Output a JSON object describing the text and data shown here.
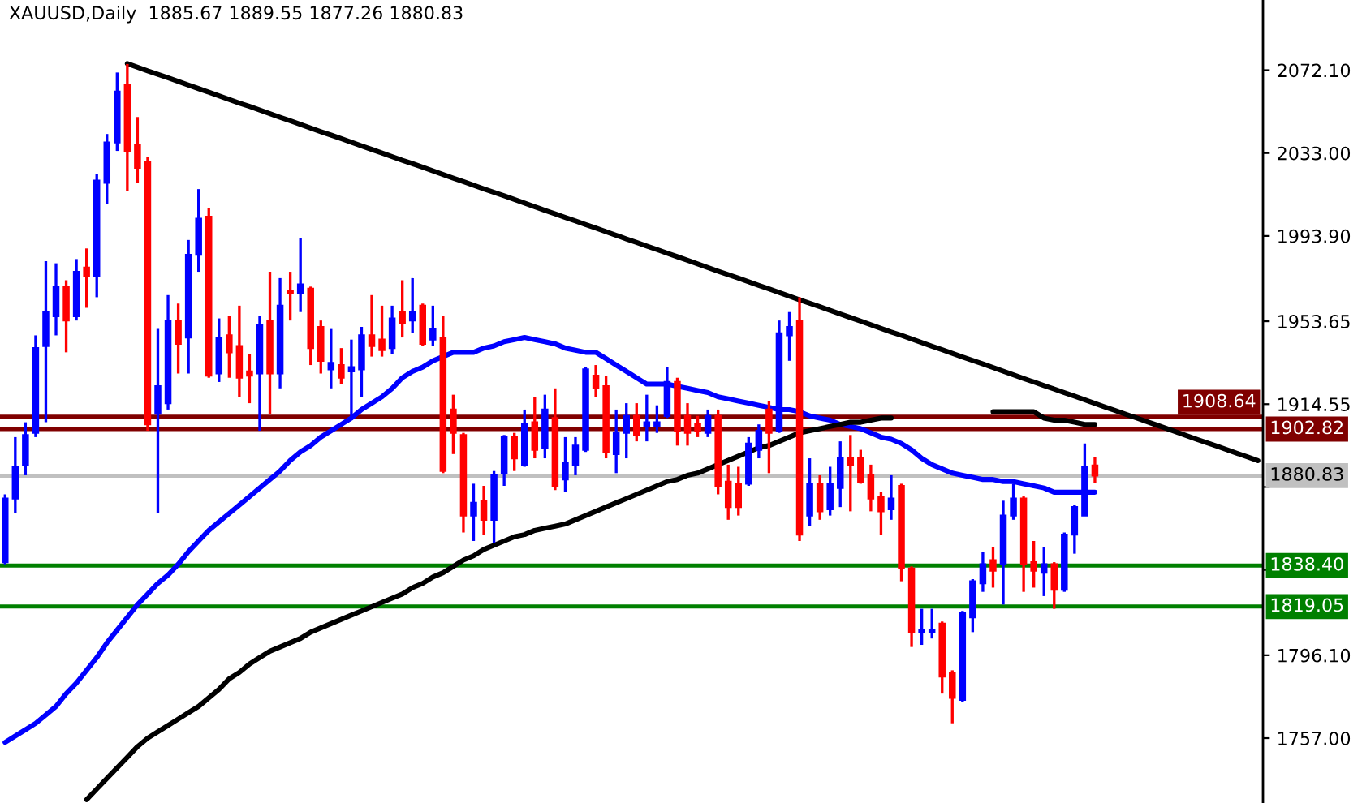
{
  "chart_data": {
    "type": "candlestick",
    "title": "XAUUSD,Daily  1885.67 1889.55 1877.26 1880.83",
    "categories": [
      null,
      null,
      null,
      null,
      null,
      null,
      null,
      null,
      null,
      null,
      null,
      null,
      null,
      null,
      null,
      null,
      null,
      null,
      null,
      null,
      null,
      null,
      null,
      null,
      null,
      null,
      null,
      null,
      null,
      null,
      null,
      null,
      null,
      null,
      null,
      null,
      null,
      null,
      null,
      null,
      null,
      null,
      null,
      null,
      null,
      null,
      null,
      null,
      null,
      null,
      null,
      null,
      null,
      null,
      null,
      null,
      null,
      null,
      null,
      null,
      null,
      null,
      null,
      null,
      null,
      null,
      null,
      null,
      null,
      null,
      null,
      null,
      null,
      null,
      null,
      null,
      null,
      null,
      null,
      null,
      null,
      null,
      null,
      null,
      null,
      null,
      null,
      null,
      null,
      null,
      null,
      null,
      null,
      null,
      null,
      null,
      null,
      null,
      null,
      null,
      null,
      null,
      null,
      null,
      null,
      null,
      null,
      null,
      null,
      null,
      null,
      null,
      null,
      null,
      null,
      null,
      null,
      null,
      null,
      null,
      null,
      null,
      null,
      null
    ],
    "ohlc": [
      [
        1840,
        1872,
        1839,
        1870
      ],
      [
        1870,
        1899,
        1863,
        1885
      ],
      [
        1886,
        1906,
        1881,
        1900
      ],
      [
        1901,
        1947,
        1899,
        1941
      ],
      [
        1942,
        1982,
        1906,
        1958
      ],
      [
        1956,
        1981,
        1947,
        1970
      ],
      [
        1970,
        1973,
        1939,
        1954
      ],
      [
        1956,
        1983,
        1954,
        1977
      ],
      [
        1979,
        1988,
        1960,
        1975
      ],
      [
        1975,
        2023,
        1965,
        2020
      ],
      [
        2019,
        2042,
        2009,
        2038
      ],
      [
        2038,
        2071,
        2034,
        2062
      ],
      [
        2065,
        2075,
        2015,
        2034
      ],
      [
        2037,
        2050,
        2019,
        2026
      ],
      [
        2029,
        2031,
        1902,
        1905
      ],
      [
        1910,
        1950,
        1863,
        1923
      ],
      [
        1915,
        1966,
        1912,
        1954
      ],
      [
        1954,
        1962,
        1929,
        1943
      ],
      [
        1946,
        1992,
        1929,
        1985
      ],
      [
        1985,
        2016,
        1977,
        2002
      ],
      [
        2003,
        2007,
        1927,
        1928
      ],
      [
        1929,
        1955,
        1925,
        1946
      ],
      [
        1947,
        1956,
        1927,
        1939
      ],
      [
        1942,
        1961,
        1918,
        1927
      ],
      [
        1930,
        1938,
        1915,
        1928
      ],
      [
        1929,
        1956,
        1902,
        1952
      ],
      [
        1954,
        1977,
        1910,
        1929
      ],
      [
        1929,
        1974,
        1922,
        1961
      ],
      [
        1968,
        1977,
        1954,
        1967
      ],
      [
        1967,
        1993,
        1958,
        1971
      ],
      [
        1969,
        1970,
        1933,
        1941
      ],
      [
        1951,
        1954,
        1929,
        1935
      ],
      [
        1931,
        1950,
        1922,
        1934
      ],
      [
        1933,
        1941,
        1924,
        1927
      ],
      [
        1930,
        1945,
        1909,
        1932
      ],
      [
        1931,
        1951,
        1918,
        1947
      ],
      [
        1947,
        1966,
        1937,
        1942
      ],
      [
        1945,
        1961,
        1937,
        1940
      ],
      [
        1941,
        1961,
        1938,
        1955
      ],
      [
        1958,
        1973,
        1946,
        1953
      ],
      [
        1954,
        1974,
        1948,
        1958
      ],
      [
        1961,
        1962,
        1942,
        1943
      ],
      [
        1945,
        1961,
        1942,
        1950
      ],
      [
        1946,
        1956,
        1882,
        1883
      ],
      [
        1912,
        1919,
        1891,
        1901
      ],
      [
        1900,
        1901,
        1854,
        1862
      ],
      [
        1862,
        1877,
        1850,
        1868
      ],
      [
        1869,
        1876,
        1853,
        1860
      ],
      [
        1860,
        1883,
        1849,
        1881
      ],
      [
        1882,
        1900,
        1876,
        1899
      ],
      [
        1899,
        1901,
        1883,
        1889
      ],
      [
        1886,
        1912,
        1885,
        1905
      ],
      [
        1906,
        1918,
        1889,
        1893
      ],
      [
        1894,
        1919,
        1889,
        1912
      ],
      [
        1908,
        1922,
        1874,
        1876
      ],
      [
        1879,
        1899,
        1873,
        1887
      ],
      [
        1886,
        1899,
        1881,
        1895
      ],
      [
        1893,
        1932,
        1892,
        1931
      ],
      [
        1928,
        1933,
        1918,
        1922
      ],
      [
        1923,
        1928,
        1889,
        1892
      ],
      [
        1891,
        1912,
        1882,
        1901
      ],
      [
        1901,
        1915,
        1889,
        1909
      ],
      [
        1909,
        1915,
        1897,
        1900
      ],
      [
        1904,
        1919,
        1897,
        1906
      ],
      [
        1904,
        1914,
        1901,
        1906
      ],
      [
        1909,
        1932,
        1908,
        1925
      ],
      [
        1925,
        1927,
        1895,
        1902
      ],
      [
        1909,
        1915,
        1895,
        1901
      ],
      [
        1905,
        1909,
        1899,
        1902
      ],
      [
        1901,
        1912,
        1899,
        1909
      ],
      [
        1909,
        1912,
        1872,
        1876
      ],
      [
        1878,
        1886,
        1860,
        1866
      ],
      [
        1877,
        1885,
        1862,
        1866
      ],
      [
        1877,
        1899,
        1876,
        1896
      ],
      [
        1893,
        1905,
        1889,
        1902
      ],
      [
        1912,
        1916,
        1882,
        1901
      ],
      [
        1902,
        1954,
        1901,
        1948
      ],
      [
        1947,
        1958,
        1935,
        1951
      ],
      [
        1954,
        1965,
        1850,
        1853
      ],
      [
        1862,
        1889,
        1857,
        1877
      ],
      [
        1877,
        1881,
        1860,
        1864
      ],
      [
        1865,
        1885,
        1862,
        1877
      ],
      [
        1875,
        1897,
        1866,
        1889
      ],
      [
        1889,
        1900,
        1864,
        1886
      ],
      [
        1889,
        1893,
        1877,
        1878
      ],
      [
        1881,
        1886,
        1864,
        1870
      ],
      [
        1871,
        1873,
        1853,
        1864
      ],
      [
        1865,
        1881,
        1860,
        1870
      ],
      [
        1876,
        1877,
        1831,
        1837
      ],
      [
        1837,
        1838,
        1800,
        1807
      ],
      [
        1807,
        1818,
        1801,
        1808
      ],
      [
        1807,
        1818,
        1804,
        1808
      ],
      [
        1811,
        1812,
        1778,
        1786
      ],
      [
        1788,
        1789,
        1764,
        1776
      ],
      [
        1775,
        1817,
        1774,
        1816
      ],
      [
        1814,
        1832,
        1807,
        1831
      ],
      [
        1830,
        1845,
        1826,
        1839
      ],
      [
        1841,
        1847,
        1828,
        1836
      ],
      [
        1839,
        1869,
        1820,
        1862
      ],
      [
        1862,
        1877,
        1860,
        1870
      ],
      [
        1870,
        1871,
        1826,
        1839
      ],
      [
        1840,
        1850,
        1828,
        1836
      ],
      [
        1835,
        1847,
        1824,
        1839
      ],
      [
        1839,
        1840,
        1818,
        1827
      ],
      [
        1827,
        1854,
        1826,
        1853
      ],
      [
        1853,
        1867,
        1844,
        1866
      ],
      [
        1862,
        1896,
        1862,
        1885
      ],
      [
        1885.67,
        1889.55,
        1877.26,
        1880.83
      ],
      null,
      null,
      null,
      null,
      null,
      null,
      null,
      null,
      null,
      null,
      null,
      null,
      null,
      null,
      null,
      null
    ],
    "colors": [
      "#0000ff",
      "#0000ff",
      "#0000ff",
      "#0000ff",
      "#0000ff",
      "#0000ff",
      "#ff0000",
      "#0000ff",
      "#ff0000",
      "#0000ff",
      "#0000ff",
      "#0000ff",
      "#ff0000",
      "#ff0000",
      "#ff0000",
      "#0000ff",
      "#0000ff",
      "#ff0000",
      "#0000ff",
      "#0000ff",
      "#ff0000",
      "#0000ff",
      "#ff0000",
      "#ff0000",
      "#ff0000",
      "#0000ff",
      "#ff0000",
      "#0000ff",
      "#ff0000",
      "#0000ff",
      "#ff0000",
      "#ff0000",
      "#0000ff",
      "#ff0000",
      "#0000ff",
      "#0000ff",
      "#ff0000",
      "#ff0000",
      "#0000ff",
      "#ff0000",
      "#0000ff",
      "#ff0000",
      "#0000ff",
      "#ff0000",
      "#ff0000",
      "#ff0000",
      "#0000ff",
      "#ff0000",
      "#0000ff",
      "#0000ff",
      "#ff0000",
      "#0000ff",
      "#ff0000",
      "#0000ff",
      "#ff0000",
      "#0000ff",
      "#0000ff",
      "#0000ff",
      "#ff0000",
      "#ff0000",
      "#0000ff",
      "#0000ff",
      "#ff0000",
      "#0000ff",
      "#0000ff",
      "#0000ff",
      "#ff0000",
      "#ff0000",
      "#ff0000",
      "#0000ff",
      "#ff0000",
      "#ff0000",
      "#ff0000",
      "#0000ff",
      "#0000ff",
      "#ff0000",
      "#0000ff",
      "#0000ff",
      "#ff0000",
      "#0000ff",
      "#ff0000",
      "#0000ff",
      "#0000ff",
      "#ff0000",
      "#ff0000",
      "#ff0000",
      "#ff0000",
      "#0000ff",
      "#ff0000",
      "#ff0000",
      "#0000ff",
      "#0000ff",
      "#ff0000",
      "#ff0000",
      "#0000ff",
      "#0000ff",
      "#0000ff",
      "#ff0000",
      "#0000ff",
      "#0000ff",
      "#ff0000",
      "#ff0000",
      "#0000ff",
      "#ff0000",
      "#0000ff",
      "#0000ff",
      "#0000ff",
      "#ff0000",
      null,
      null,
      null,
      null,
      null,
      null,
      null,
      null,
      null,
      null,
      null,
      null,
      null,
      null,
      null,
      null
    ],
    "series": [
      {
        "type": "line",
        "color": "#0000ff",
        "values": [
          1755,
          1758,
          1761,
          1764,
          1768,
          1772,
          1778,
          1783,
          1789,
          1795,
          1802,
          1808,
          1814,
          1820,
          1825,
          1830,
          1834,
          1839,
          1845,
          1850,
          1855,
          1859,
          1863,
          1867,
          1871,
          1875,
          1879,
          1883,
          1888,
          1892,
          1895,
          1899,
          1902,
          1905,
          1908,
          1912,
          1915,
          1918,
          1922,
          1927,
          1930,
          1932,
          1935,
          1937,
          1939,
          1939,
          1939,
          1941,
          1942,
          1944,
          1945,
          1946,
          1945,
          1944,
          1943,
          1941,
          1940,
          1939,
          1939,
          1936,
          1933,
          1930,
          1927,
          1924,
          1924,
          1924,
          1923,
          1922,
          1921,
          1920,
          1918,
          1917,
          1916,
          1915,
          1914,
          1913,
          1912,
          1912,
          1911,
          1909,
          1908,
          1907,
          1905,
          1904,
          1903,
          1901,
          1899,
          1898,
          1896,
          1893,
          1889,
          1886,
          1884,
          1882,
          1881,
          1880,
          1879,
          1879,
          1878,
          1878,
          1877,
          1876,
          1875,
          1873,
          1873,
          1873,
          1873,
          1873,
          null,
          null,
          null,
          null,
          null,
          null,
          null,
          null,
          null,
          null,
          null,
          null,
          null,
          null,
          null,
          null
        ]
      },
      {
        "type": "line",
        "color": "#000000",
        "values": [
          null,
          null,
          null,
          null,
          null,
          null,
          null,
          null,
          1728,
          1733,
          1738,
          1743,
          1748,
          1753,
          1757,
          1760,
          1763,
          1766,
          1769,
          1772,
          1776,
          1780,
          1785,
          1788,
          1792,
          1795,
          1798,
          1800,
          1802,
          1804,
          1807,
          1809,
          1811,
          1813,
          1815,
          1817,
          1819,
          1821,
          1823,
          1825,
          1828,
          1830,
          1833,
          1835,
          1838,
          1841,
          1843,
          1846,
          1848,
          1850,
          1852,
          1853,
          1855,
          1856,
          1857,
          1858,
          1860,
          1862,
          1864,
          1866,
          1868,
          1870,
          1872,
          1874,
          1876,
          1878,
          1879,
          1881,
          1882,
          1884,
          1886,
          1888,
          1890,
          1892,
          1894,
          1895,
          1897,
          1899,
          1901,
          1902,
          1903,
          1904,
          1905,
          1906,
          1906,
          1907,
          1908,
          1908,
          null,
          null,
          null,
          null,
          null,
          null,
          null,
          null,
          null,
          1911,
          1911,
          1911,
          1911,
          1911,
          1908,
          1907,
          1907,
          1906,
          1905,
          1905,
          null,
          null,
          null,
          null,
          null,
          null,
          null,
          null,
          null,
          null,
          null,
          null,
          null,
          null,
          null,
          null
        ]
      },
      {
        "type": "line",
        "color": "#000000",
        "values": [
          null,
          null,
          null,
          null,
          null,
          null,
          null,
          null,
          null,
          null,
          null,
          null,
          2075.2,
          2073.5,
          2071.8,
          2070.1,
          2068.5,
          2066.8,
          2065.1,
          2063.4,
          2061.7,
          2060.0,
          2058.3,
          2056.6,
          2055.0,
          2053.3,
          2051.6,
          2049.9,
          2048.2,
          2046.5,
          2044.8,
          2043.1,
          2041.5,
          2039.8,
          2038.1,
          2036.4,
          2034.7,
          2033.0,
          2031.3,
          2029.6,
          2028.0,
          2026.3,
          2024.6,
          2022.9,
          2021.2,
          2019.5,
          2017.8,
          2016.1,
          2014.5,
          2012.8,
          2011.1,
          2009.4,
          2007.7,
          2006.0,
          2004.3,
          2002.6,
          2001.0,
          1999.3,
          1997.6,
          1995.9,
          1994.2,
          1992.5,
          1990.8,
          1989.1,
          1987.5,
          1985.8,
          1984.1,
          1982.4,
          1980.7,
          1979.0,
          1977.3,
          1975.6,
          1974.0,
          1972.3,
          1970.6,
          1968.9,
          1967.2,
          1965.5,
          1963.8,
          1962.1,
          1960.5,
          1958.8,
          1957.1,
          1955.4,
          1953.7,
          1952.0,
          1950.3,
          1948.6,
          1947.0,
          1945.3,
          1943.6,
          1941.9,
          1940.2,
          1938.5,
          1936.8,
          1935.2,
          1933.5,
          1931.8,
          1930.1,
          1928.4,
          1926.7,
          1925.0,
          1923.3,
          1921.7,
          1920.0,
          1918.3,
          1916.6,
          1914.9,
          1913.2,
          1911.5,
          1909.8,
          1908.2,
          1906.5,
          1904.8,
          1903.1,
          1901.4,
          1899.7,
          1898.0,
          1896.3,
          1894.7,
          1893.0,
          1891.3,
          1889.6,
          1887.9
        ]
      }
    ],
    "ylim": [
      1726.4,
      2105.2
    ],
    "yticks": [
      {
        "value": 2072.1,
        "label": "2072.10"
      },
      {
        "value": 2033,
        "label": "2033.00"
      },
      {
        "value": 1993.9,
        "label": "1993.90"
      },
      {
        "value": 1953.65,
        "label": "1953.65"
      },
      {
        "value": 1914.55,
        "label": "1914.55"
      },
      {
        "value": 1875.45,
        "label": null
      },
      {
        "value": 1836.35,
        "label": null
      },
      {
        "value": 1796.1,
        "label": "1796.10"
      },
      {
        "value": 1757,
        "label": "1757.00"
      }
    ],
    "ref_lines": [
      {
        "axis": "y",
        "value": 1902.82,
        "label": "1902.82",
        "color": "#800000"
      },
      {
        "axis": "y",
        "value": 1908.64,
        "label": "1908.64",
        "color": "#800000"
      },
      {
        "axis": "y",
        "value": 1880.83,
        "label": "1880.83",
        "color": "#c0c0c0"
      },
      {
        "axis": "y",
        "value": 1838.4,
        "label": "1838.40",
        "color": "#008000"
      },
      {
        "axis": "y",
        "value": 1819.05,
        "label": "1819.05",
        "color": "#008000"
      }
    ],
    "tick_labels": "y"
  }
}
